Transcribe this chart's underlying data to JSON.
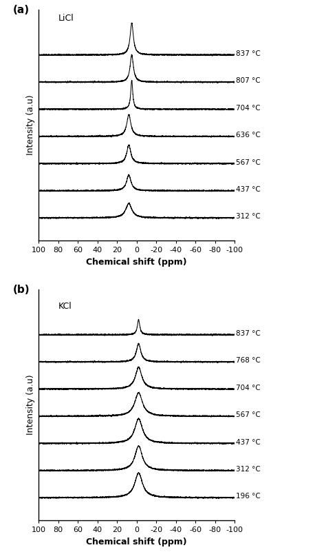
{
  "panel_a": {
    "label": "(a)",
    "compound": "LiCl",
    "temperatures": [
      "837 °C",
      "807 °C",
      "704 °C",
      "636 °C",
      "567 °C",
      "437 °C",
      "312 °C"
    ],
    "peak_centers": [
      5,
      5,
      5,
      8,
      8,
      8,
      8
    ],
    "peak_widths": [
      4.0,
      4.0,
      2.5,
      5.0,
      5.0,
      5.5,
      7.5
    ],
    "peak_heights": [
      1.05,
      0.9,
      0.95,
      0.72,
      0.62,
      0.52,
      0.48
    ],
    "offsets": [
      6.0,
      5.1,
      4.2,
      3.3,
      2.4,
      1.5,
      0.6
    ],
    "noise_amp": 0.01
  },
  "panel_b": {
    "label": "(b)",
    "compound": "KCl",
    "temperatures": [
      "837 °C",
      "768 °C",
      "704 °C",
      "567 °C",
      "437 °C",
      "312 °C",
      "196 °C"
    ],
    "peak_centers": [
      -2,
      -2,
      -2,
      -2,
      -2,
      -2,
      -2
    ],
    "peak_widths": [
      3.0,
      5.5,
      8.0,
      9.5,
      9.5,
      9.0,
      9.5
    ],
    "peak_heights": [
      0.5,
      0.6,
      0.72,
      0.78,
      0.82,
      0.82,
      0.82
    ],
    "offsets": [
      6.0,
      5.1,
      4.2,
      3.3,
      2.4,
      1.5,
      0.6
    ],
    "noise_amp": 0.01
  },
  "xlim": [
    100,
    -100
  ],
  "xticks": [
    100,
    80,
    60,
    40,
    20,
    0,
    -20,
    -40,
    -60,
    -80,
    -100
  ],
  "xlabel": "Chemical shift (ppm)",
  "ylabel": "Intensity (a.u)",
  "background_color": "#ffffff",
  "line_color": "#000000"
}
